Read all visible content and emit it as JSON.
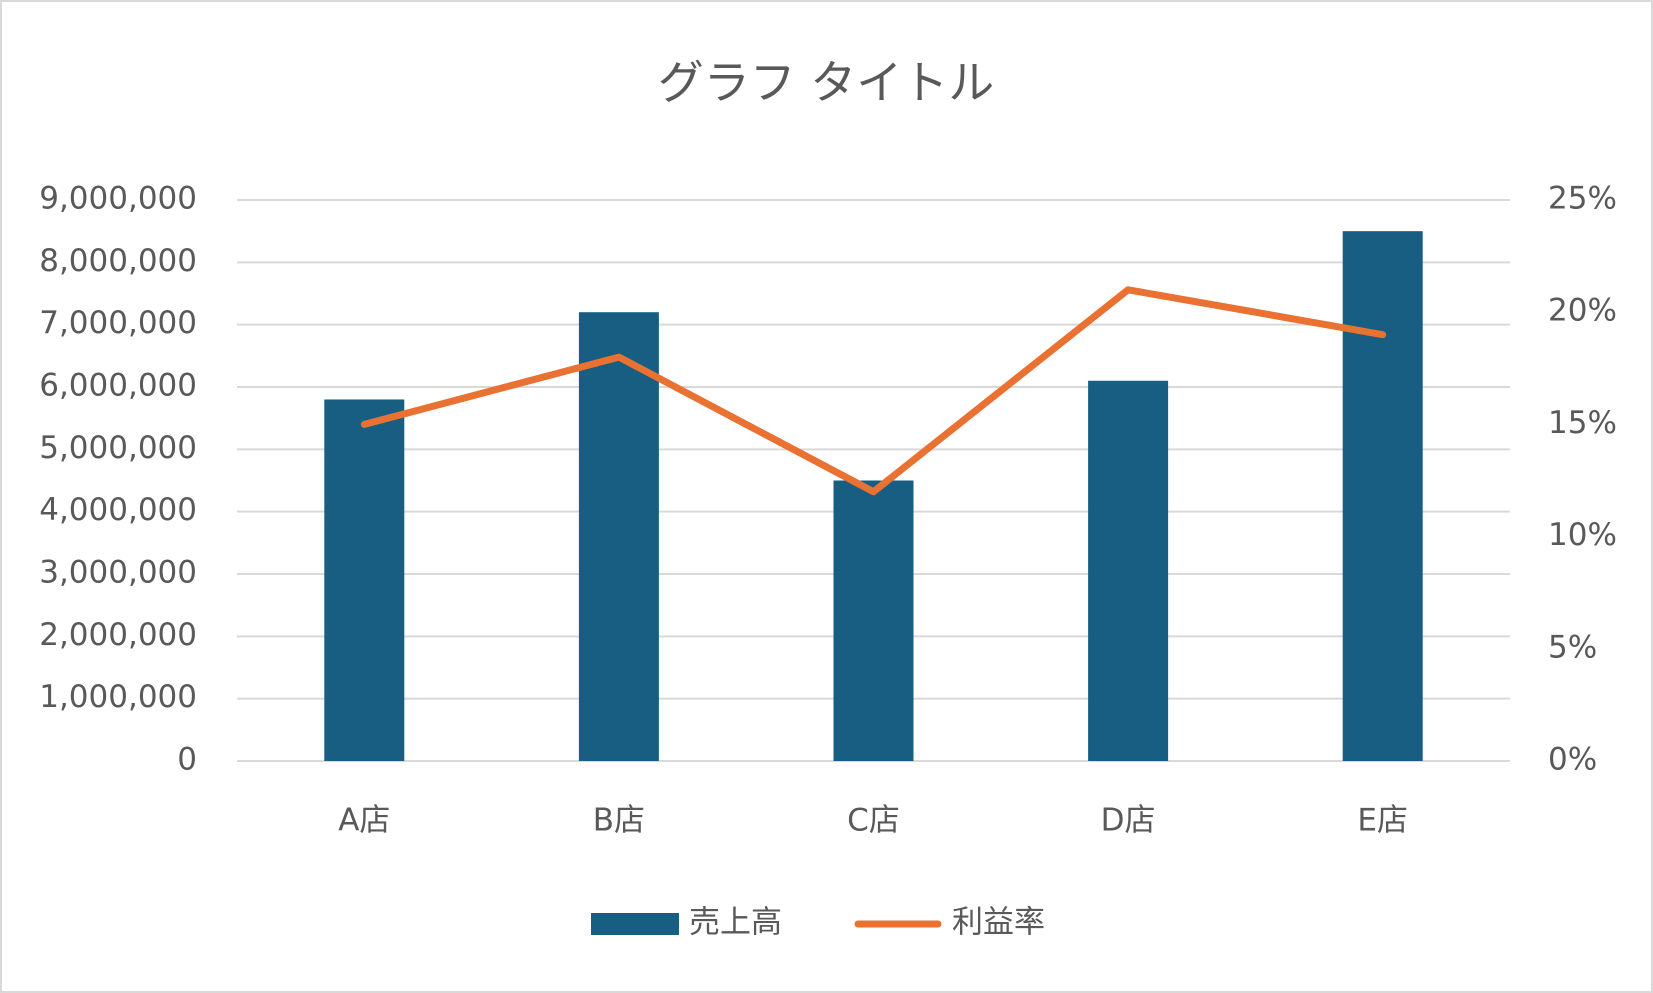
{
  "chart_data": {
    "type": "bar-line",
    "title": "グラフ タイトル",
    "categories": [
      "A店",
      "B店",
      "C店",
      "D店",
      "E店"
    ],
    "series": [
      {
        "name": "売上高",
        "type": "bar",
        "color": "#175e82",
        "values": [
          5800000,
          7200000,
          4500000,
          6100000,
          8500000
        ]
      },
      {
        "name": "利益率",
        "type": "line",
        "axis": "y2",
        "color": "#e97132",
        "values": [
          15,
          18,
          12,
          21,
          19
        ]
      }
    ],
    "ylim": [
      0,
      9000000
    ],
    "yticks": [
      0,
      {
        "value": 1000000,
        "label": "1,000,000"
      },
      {
        "value": 2000000,
        "label": "2,000,000"
      },
      {
        "value": 3000000,
        "label": "3,000,000"
      },
      {
        "value": 4000000,
        "label": "4,000,000"
      },
      {
        "value": 5000000,
        "label": "5,000,000"
      },
      {
        "value": 6000000,
        "label": "6,000,000"
      },
      {
        "value": 7000000,
        "label": "7,000,000"
      },
      {
        "value": 8000000,
        "label": "8,000,000"
      },
      {
        "value": 9000000,
        "label": "9,000,000"
      }
    ],
    "y2lim": [
      0,
      25
    ],
    "y2ticks": [
      {
        "value": 0,
        "label": "0%"
      },
      {
        "value": 5,
        "label": "5%"
      },
      {
        "value": 10,
        "label": "10%"
      },
      {
        "value": 15,
        "label": "15%"
      },
      {
        "value": 20,
        "label": "20%"
      },
      {
        "value": 25,
        "label": "25%"
      }
    ],
    "grid": true,
    "legend": "bottom"
  }
}
